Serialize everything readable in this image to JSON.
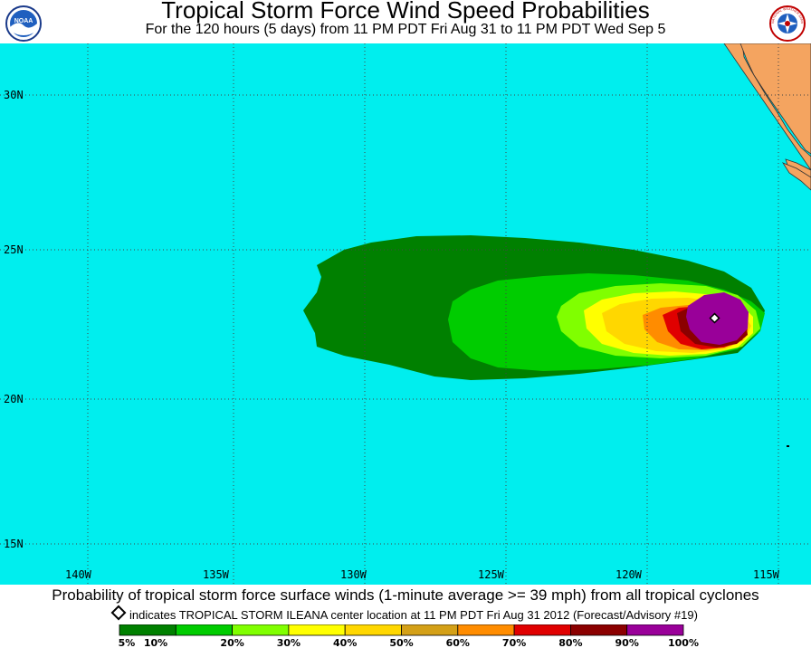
{
  "header": {
    "title": "Tropical Storm Force Wind Speed Probabilities",
    "subtitle": "For the 120 hours (5 days) from 11 PM PDT Fri Aug 31 to 11 PM PDT Wed Sep 5"
  },
  "logos": {
    "left": "noaa-logo",
    "left_text": "NOAA",
    "right": "nws-logo",
    "right_text": "NATIONAL WEATHER SERVICE"
  },
  "map": {
    "ocean_color": "#00eeee",
    "land_color": "#f4a460",
    "lat_labels": [
      "30N",
      "25N",
      "20N",
      "15N"
    ],
    "lon_labels": [
      "140W",
      "135W",
      "130W",
      "125W",
      "120W",
      "115W"
    ],
    "storm_center": {
      "lat": 22.8,
      "lon": -117.4
    }
  },
  "footer": {
    "line1": "Probability of tropical storm force surface winds (1-minute average >= 39 mph) from all tropical cyclones",
    "line2": "indicates TROPICAL STORM ILEANA center location at 11 PM PDT Fri Aug 31 2012 (Forecast/Advisory #19)"
  },
  "legend": {
    "labels": [
      "5%",
      "10%",
      "20%",
      "30%",
      "40%",
      "50%",
      "60%",
      "70%",
      "80%",
      "90%",
      "100%"
    ],
    "colors": [
      "#008000",
      "#00cc00",
      "#80ff00",
      "#ffff00",
      "#ffd700",
      "#d4a017",
      "#ff8c00",
      "#e00000",
      "#8b0000",
      "#990099"
    ]
  }
}
